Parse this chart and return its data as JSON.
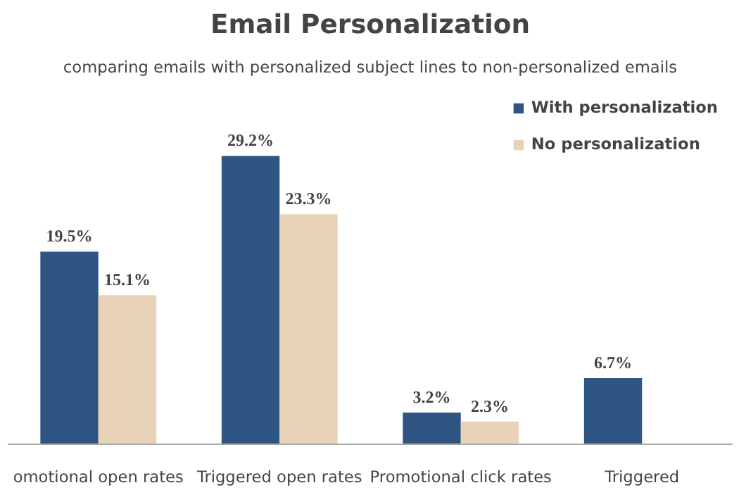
{
  "chart_data": {
    "type": "bar",
    "title": "Email Personalization",
    "subtitle": "comparing emails with personalized subject lines to non-personalized emails",
    "categories": [
      "omotional open rates",
      "Triggered open rates",
      "Promotional click rates",
      "Triggered"
    ],
    "series": [
      {
        "name": "With personalization",
        "color": "#2f5582",
        "values": [
          19.5,
          29.2,
          3.2,
          6.7
        ],
        "value_labels": [
          "19.5%",
          "29.2%",
          "3.2%",
          "6.7%"
        ]
      },
      {
        "name": "No personalization",
        "color": "#e8d3b9",
        "values": [
          15.1,
          23.3,
          2.3,
          null
        ],
        "value_labels": [
          "15.1%",
          "23.3%",
          "2.3%",
          null
        ]
      }
    ],
    "legend": "top right",
    "grid": false
  }
}
